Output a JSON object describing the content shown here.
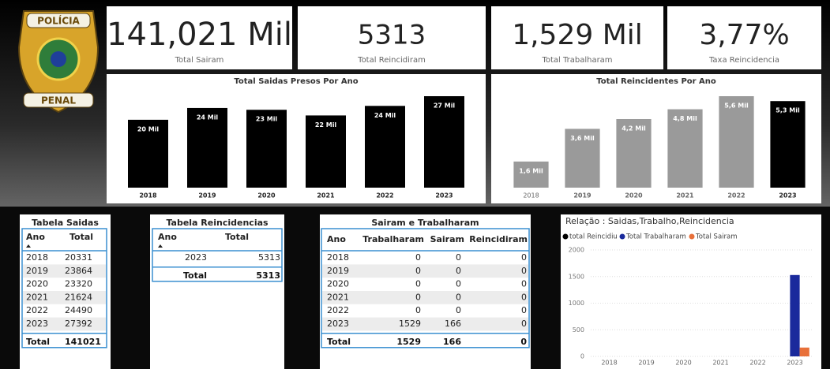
{
  "logo": {
    "top": "POLÍCIA",
    "bottom": "PENAL"
  },
  "cards": [
    {
      "value": "141,021 Mil",
      "label": "Total Sairam"
    },
    {
      "value": "5313",
      "label": "Total Reincidiram"
    },
    {
      "value": "1,529 Mil",
      "label": "Total Trabalharam"
    },
    {
      "value": "3,77%",
      "label": "Taxa Reincidencia"
    }
  ],
  "chart_data": [
    {
      "type": "bar",
      "title": "Total Saidas Presos Por Ano",
      "categories": [
        "2018",
        "2019",
        "2020",
        "2021",
        "2022",
        "2023"
      ],
      "values": [
        20.331,
        23.864,
        23.32,
        21.624,
        24.49,
        27.392
      ],
      "value_labels": [
        "20 Mil",
        "24 Mil",
        "23 Mil",
        "22 Mil",
        "24 Mil",
        "27 Mil"
      ],
      "color": "#000000"
    },
    {
      "type": "bar",
      "title": "Total Reincidentes Por Ano",
      "categories": [
        "2018",
        "2019",
        "2020",
        "2021",
        "2022",
        "2023"
      ],
      "values": [
        1.6,
        3.6,
        4.2,
        4.8,
        5.6,
        5.3
      ],
      "value_labels": [
        "1,6 Mil",
        "3,6 Mil",
        "4,2 Mil",
        "4,8 Mil",
        "5,6 Mil",
        "5,3 Mil"
      ],
      "colors": [
        "#9a9a9a",
        "#9a9a9a",
        "#9a9a9a",
        "#9a9a9a",
        "#9a9a9a",
        "#000000"
      ]
    },
    {
      "type": "grouped_bar",
      "title": "Relação : Saidas,Trabalho,Reincidencia",
      "categories": [
        "2018",
        "2019",
        "2020",
        "2021",
        "2022",
        "2023"
      ],
      "series": [
        {
          "name": "total Reincidiu",
          "color": "#000000",
          "values": [
            0,
            0,
            0,
            0,
            0,
            0
          ]
        },
        {
          "name": "Total Trabalharam",
          "color": "#1a2a9c",
          "values": [
            0,
            0,
            0,
            0,
            0,
            1529
          ]
        },
        {
          "name": "Total Sairam",
          "color": "#e8703a",
          "values": [
            0,
            0,
            0,
            0,
            0,
            166
          ]
        }
      ],
      "ylim": [
        0,
        2000
      ],
      "yticks": [
        0,
        500,
        1000,
        1500,
        2000
      ],
      "grid": true
    }
  ],
  "tables": [
    {
      "title": "Tabela Saidas",
      "columns": [
        "Ano",
        "Total"
      ],
      "rows": [
        [
          2018,
          20331
        ],
        [
          2019,
          23864
        ],
        [
          2020,
          23320
        ],
        [
          2021,
          21624
        ],
        [
          2022,
          24490
        ],
        [
          2023,
          27392
        ]
      ],
      "total": [
        "Total",
        141021
      ]
    },
    {
      "title": "Tabela Reincidencias",
      "columns": [
        "Ano",
        "Total"
      ],
      "rows": [
        [
          2023,
          5313
        ]
      ],
      "total": [
        "Total",
        5313
      ]
    },
    {
      "title": "Sairam e Trabalharam",
      "columns": [
        "Ano",
        "Trabalharam",
        "Sairam",
        "Reincidiram"
      ],
      "rows": [
        [
          2018,
          0,
          0,
          0
        ],
        [
          2019,
          0,
          0,
          0
        ],
        [
          2020,
          0,
          0,
          0
        ],
        [
          2021,
          0,
          0,
          0
        ],
        [
          2022,
          0,
          0,
          0
        ],
        [
          2023,
          1529,
          166,
          0
        ]
      ],
      "total": [
        "Total",
        1529,
        166,
        0
      ]
    }
  ]
}
